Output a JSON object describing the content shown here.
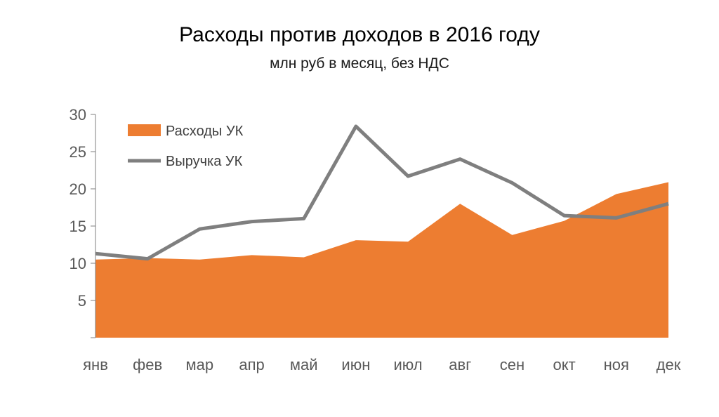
{
  "chart_data": {
    "type": "area",
    "title": "Расходы против доходов в 2016 году",
    "subtitle": "млн руб в месяц, без НДС",
    "xlabel": "",
    "ylabel": "",
    "categories": [
      "янв",
      "фев",
      "мар",
      "апр",
      "май",
      "июн",
      "июл",
      "авг",
      "сен",
      "окт",
      "ноя",
      "дек"
    ],
    "ylim": [
      0,
      30
    ],
    "yticks": [
      "5",
      "10",
      "15",
      "20",
      "25",
      "30"
    ],
    "yticks_values": [
      5,
      10,
      15,
      20,
      25,
      30
    ],
    "grid": false,
    "legend_position": "top-left",
    "series": [
      {
        "name": "Расходы УК",
        "kind": "area",
        "color": "#ED7D31",
        "values": [
          10.5,
          10.7,
          10.5,
          11.1,
          10.8,
          13.1,
          12.9,
          18.0,
          13.8,
          15.7,
          19.3,
          20.9
        ]
      },
      {
        "name": "Выручка УК",
        "kind": "line",
        "color": "#7F7F7F",
        "values": [
          11.3,
          10.6,
          14.6,
          15.6,
          16.0,
          28.4,
          21.7,
          24.0,
          20.8,
          16.4,
          16.1,
          18.0
        ]
      }
    ]
  }
}
